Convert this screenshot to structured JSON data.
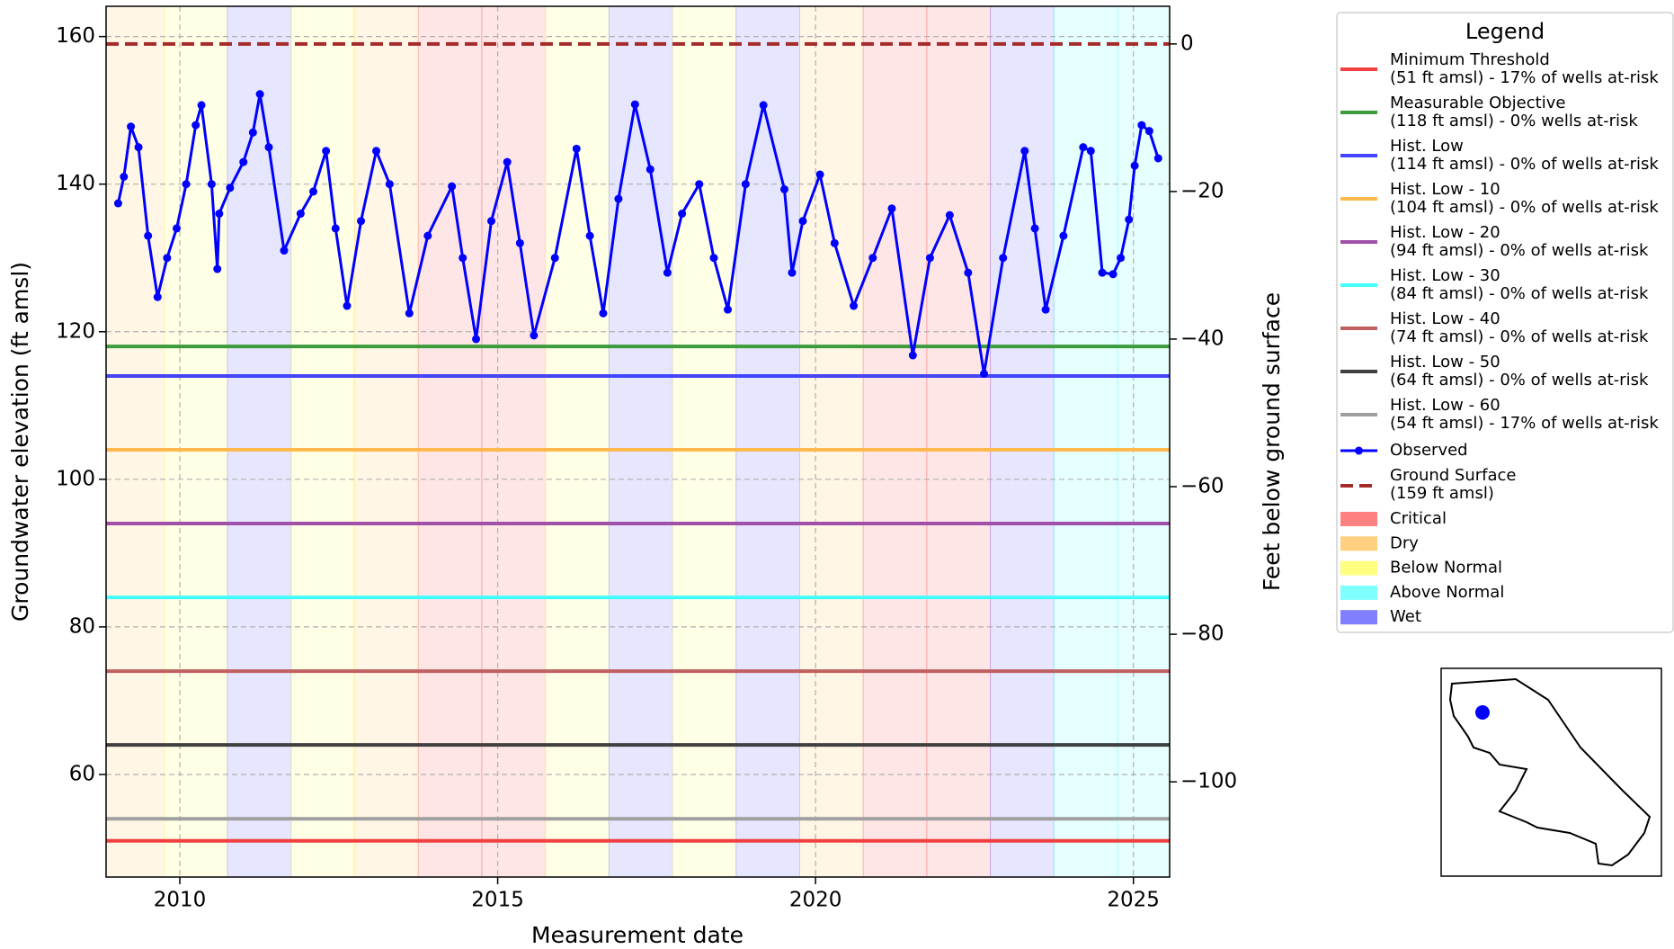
{
  "chart_data": {
    "type": "line",
    "xlabel": "Measurement date",
    "ylabel": "Groundwater elevation (ft amsl)",
    "y2label": "Feet below ground surface",
    "legend_title": "Legend",
    "xlim": [
      2008.84,
      2025.57
    ],
    "ylim": [
      46.1,
      164.1
    ],
    "y2lim": [
      -112.9,
      5.1
    ],
    "xticks": [
      2010,
      2015,
      2020,
      2025
    ],
    "yticks": [
      60,
      80,
      100,
      120,
      140,
      160
    ],
    "y2ticks": [
      {
        "value": -100,
        "label": "−100"
      },
      {
        "value": -80,
        "label": "−80"
      },
      {
        "value": -60,
        "label": "−60"
      },
      {
        "value": -40,
        "label": "−40"
      },
      {
        "value": -20,
        "label": "−20"
      },
      0
    ],
    "grid": true,
    "reference_lines": [
      {
        "name": "Minimum Threshold",
        "detail": "(51 ft amsl) - 17% of wells at-risk",
        "value": 51,
        "color": "#f04040"
      },
      {
        "name": "Measurable Objective",
        "detail": "(118 ft amsl) - 0% wells at-risk",
        "value": 118,
        "color": "#3c9c3c"
      },
      {
        "name": "Hist. Low",
        "detail": "(114 ft amsl) - 0% of wells at-risk",
        "value": 114,
        "color": "#4444ff"
      },
      {
        "name": "Hist. Low - 10",
        "detail": "(104 ft amsl) - 0% of wells at-risk",
        "value": 104,
        "color": "#ffb84c"
      },
      {
        "name": "Hist. Low - 20",
        "detail": "(94 ft amsl) - 0% of wells at-risk",
        "value": 94,
        "color": "#a050a8"
      },
      {
        "name": "Hist. Low - 30",
        "detail": "(84 ft amsl) - 0% of wells at-risk",
        "value": 84,
        "color": "#44ffff"
      },
      {
        "name": "Hist. Low - 40",
        "detail": "(74 ft amsl) - 0% of wells at-risk",
        "value": 74,
        "color": "#c06060"
      },
      {
        "name": "Hist. Low - 50",
        "detail": "(64 ft amsl) - 0% of wells at-risk",
        "value": 64,
        "color": "#404040"
      },
      {
        "name": "Hist. Low - 60",
        "detail": "(54 ft amsl) - 17% of wells at-risk",
        "value": 54,
        "color": "#a0a0a0"
      }
    ],
    "series": [
      {
        "name": "Observed",
        "color": "#0000ff",
        "x": [
          2009.03,
          2009.12,
          2009.23,
          2009.35,
          2009.5,
          2009.65,
          2009.8,
          2009.95,
          2010.1,
          2010.25,
          2010.34,
          2010.5,
          2010.59,
          2010.62,
          2010.79,
          2011.0,
          2011.15,
          2011.26,
          2011.4,
          2011.64,
          2011.9,
          2012.1,
          2012.3,
          2012.45,
          2012.63,
          2012.85,
          2013.09,
          2013.3,
          2013.61,
          2013.9,
          2014.28,
          2014.45,
          2014.66,
          2014.9,
          2015.15,
          2015.35,
          2015.57,
          2015.9,
          2016.24,
          2016.45,
          2016.66,
          2016.9,
          2017.16,
          2017.4,
          2017.67,
          2017.9,
          2018.17,
          2018.4,
          2018.62,
          2018.9,
          2019.18,
          2019.51,
          2019.63,
          2019.8,
          2020.07,
          2020.3,
          2020.6,
          2020.9,
          2021.2,
          2021.53,
          2021.8,
          2022.11,
          2022.4,
          2022.65,
          2022.95,
          2023.29,
          2023.45,
          2023.62,
          2023.9,
          2024.21,
          2024.33,
          2024.51,
          2024.68,
          2024.8,
          2024.93,
          2025.02,
          2025.13,
          2025.25,
          2025.39
        ],
        "values": [
          137.4,
          141,
          147.8,
          145,
          133,
          124.7,
          130,
          134,
          140,
          148,
          150.7,
          140,
          128.5,
          136,
          139.5,
          143,
          147,
          152.2,
          145,
          131,
          136,
          139,
          144.5,
          134,
          123.5,
          135,
          144.5,
          140,
          122.5,
          133,
          139.7,
          130,
          119,
          135,
          143,
          132,
          119.5,
          130,
          144.8,
          133,
          122.5,
          138,
          150.8,
          142,
          128,
          136,
          140,
          130,
          123,
          140,
          150.7,
          139.3,
          128,
          135,
          141.3,
          132,
          123.5,
          130,
          136.7,
          116.8,
          130,
          135.8,
          128,
          114.3,
          130,
          144.5,
          134,
          123,
          133,
          145,
          144.5,
          128,
          127.8,
          130,
          135.2,
          142.5,
          148,
          147.2,
          143.5
        ]
      }
    ],
    "ground_surface": {
      "name": "Ground Surface",
      "detail": "(159 ft amsl)",
      "value": 159,
      "color": "#a52a2a"
    },
    "year_classes": [
      {
        "name": "Critical",
        "color": "#ff8080"
      },
      {
        "name": "Dry",
        "color": "#ffd080"
      },
      {
        "name": "Below Normal",
        "color": "#ffff80"
      },
      {
        "name": "Above Normal",
        "color": "#80ffff"
      },
      {
        "name": "Wet",
        "color": "#8080ff"
      }
    ],
    "bands": [
      {
        "start": 2008.75,
        "end": 2009.75,
        "class": "Dry"
      },
      {
        "start": 2009.75,
        "end": 2010.75,
        "class": "Below Normal"
      },
      {
        "start": 2010.75,
        "end": 2011.75,
        "class": "Wet"
      },
      {
        "start": 2011.75,
        "end": 2012.75,
        "class": "Below Normal"
      },
      {
        "start": 2012.75,
        "end": 2013.75,
        "class": "Dry"
      },
      {
        "start": 2013.75,
        "end": 2014.75,
        "class": "Critical"
      },
      {
        "start": 2014.75,
        "end": 2015.75,
        "class": "Critical"
      },
      {
        "start": 2015.75,
        "end": 2016.75,
        "class": "Below Normal"
      },
      {
        "start": 2016.75,
        "end": 2017.75,
        "class": "Wet"
      },
      {
        "start": 2017.75,
        "end": 2018.75,
        "class": "Below Normal"
      },
      {
        "start": 2018.75,
        "end": 2019.75,
        "class": "Wet"
      },
      {
        "start": 2019.75,
        "end": 2020.75,
        "class": "Dry"
      },
      {
        "start": 2020.75,
        "end": 2021.75,
        "class": "Critical"
      },
      {
        "start": 2021.75,
        "end": 2022.75,
        "class": "Critical"
      },
      {
        "start": 2022.75,
        "end": 2023.75,
        "class": "Wet"
      },
      {
        "start": 2023.75,
        "end": 2024.75,
        "class": "Above Normal"
      },
      {
        "start": 2024.75,
        "end": 2025.75,
        "class": "Above Normal"
      }
    ]
  }
}
